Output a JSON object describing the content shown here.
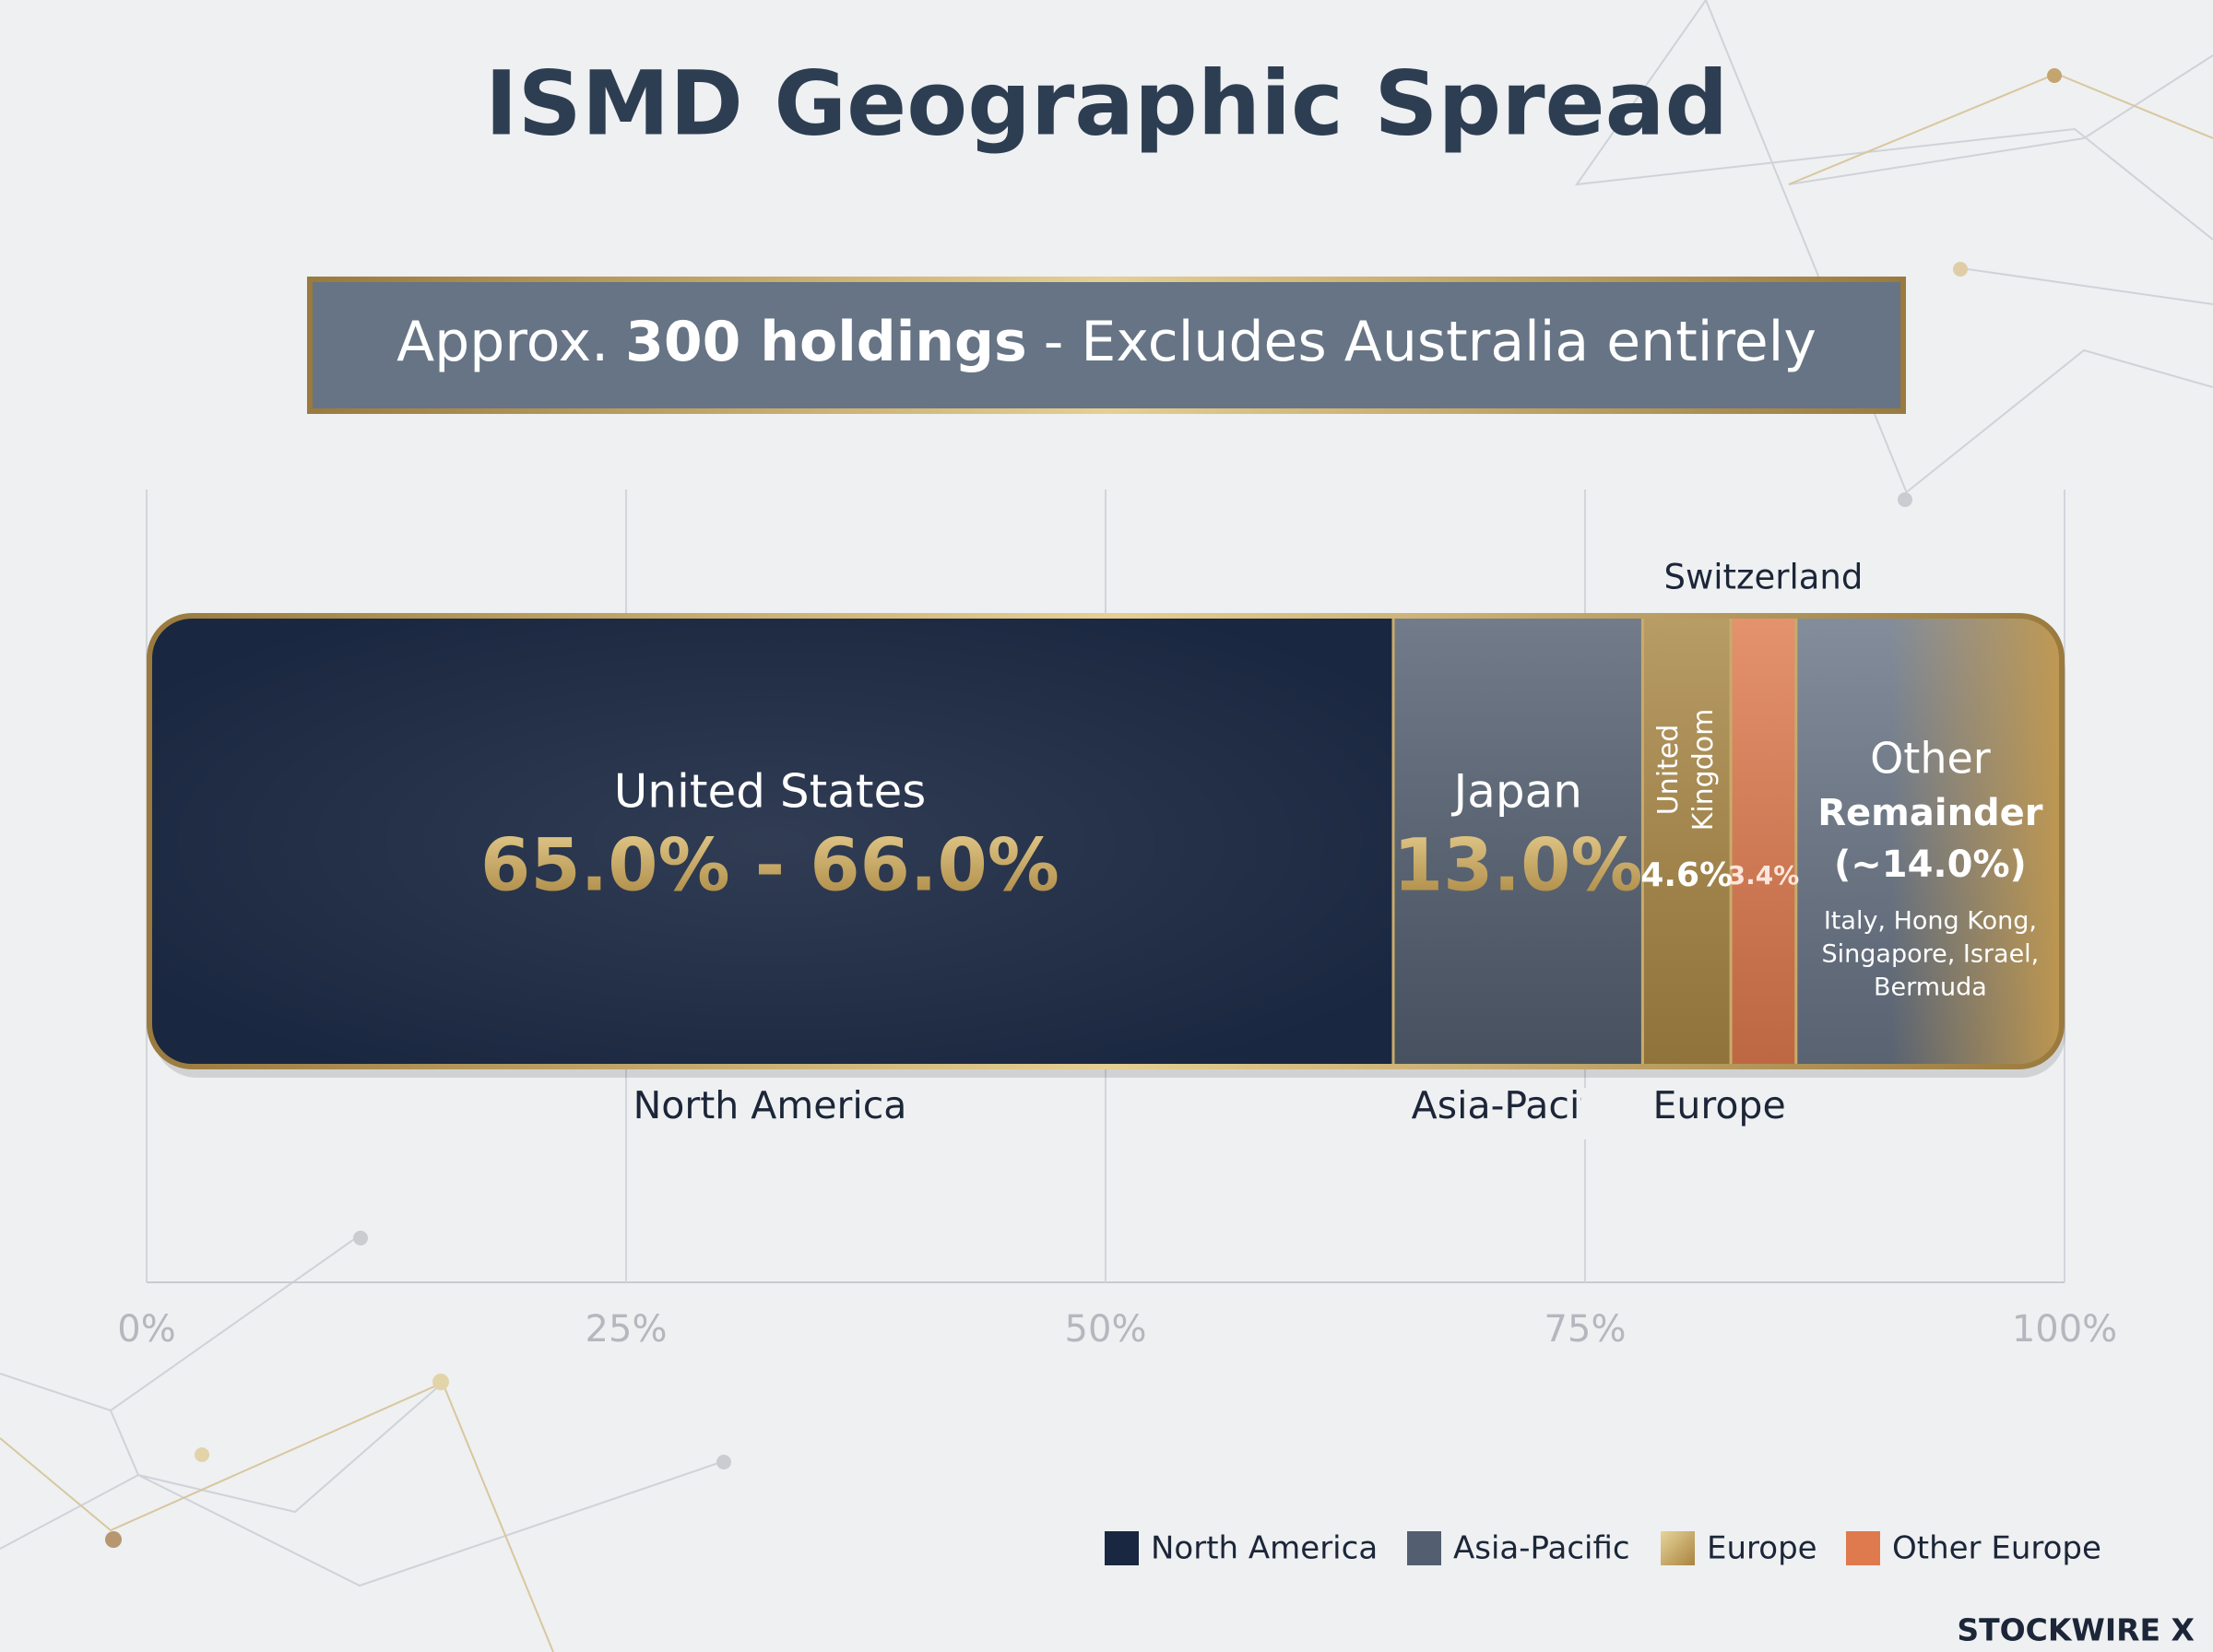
{
  "chart_data": {
    "type": "stacked-bar",
    "title": "ISMD Geographic Spread",
    "subtitle": {
      "lead": "Approx.",
      "emphasis": "300 holdings",
      "rest": "- Excludes Australia entirely"
    },
    "xlim": [
      0,
      100
    ],
    "xticks": [
      {
        "value": 0,
        "label": "0%"
      },
      {
        "value": 25,
        "label": "25%"
      },
      {
        "value": 50,
        "label": "50%"
      },
      {
        "value": 75,
        "label": "75%"
      },
      {
        "value": 100,
        "label": "100%"
      }
    ],
    "grid": true,
    "segments": [
      {
        "name": "United States",
        "value": 65.0,
        "value_high": 66.0,
        "value_label": "65.0% - 66.0%",
        "color": "#1a2740"
      },
      {
        "name": "Japan",
        "value": 13.0,
        "value_label": "13.0%",
        "color": "#535f70"
      },
      {
        "name": [
          "United",
          "Kingdom"
        ],
        "value": 4.6,
        "value_label": "4.6%",
        "color": "#a98744"
      },
      {
        "name": "Switzerland",
        "value": 3.4,
        "value_label": "3.4%",
        "color": "#df7a4e"
      },
      {
        "name": [
          "Other",
          "Remainder"
        ],
        "value": 14.0,
        "value_label": "(~14.0%)",
        "color": "#687485",
        "note": [
          "Italy, Hong Kong,",
          "Singapore, Israel,",
          "Bermuda"
        ]
      }
    ],
    "region_labels": [
      "North America",
      "Asia-Pacific",
      "Europe"
    ],
    "legend": [
      {
        "name": "North America",
        "color": "#1a2740"
      },
      {
        "name": "Asia-Pacific",
        "color": "#535f70"
      },
      {
        "name": "Europe",
        "color": "#c4a25e"
      },
      {
        "name": "Other Europe",
        "color": "#df7a4e"
      }
    ],
    "brand": "STOCKWIRE X"
  }
}
